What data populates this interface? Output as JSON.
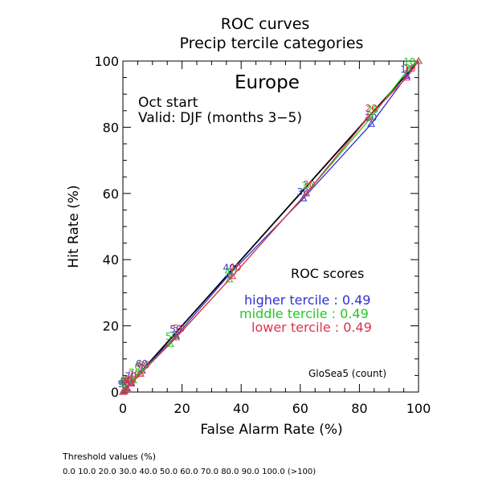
{
  "chart_data": {
    "type": "line",
    "title": "ROC curves",
    "subtitle": "Precip tercile categories",
    "region": "Europe",
    "start_label": "Oct start",
    "valid_label": "Valid: DJF (months 3−5)",
    "xlabel": "False Alarm Rate (%)",
    "ylabel": "Hit Rate (%)",
    "xlim": [
      0,
      100
    ],
    "ylim": [
      0,
      100
    ],
    "x_ticks": [
      "0",
      "20",
      "40",
      "60",
      "80",
      "100"
    ],
    "y_ticks": [
      "0",
      "20",
      "40",
      "60",
      "80",
      "100"
    ],
    "grid": false,
    "legend_position": "middle-right",
    "scores_title": "ROC scores",
    "model_label": "GloSea5 (count)",
    "threshold_title": "Threshold values (%)",
    "threshold_values": "0.0 10.0 20.0 30.0 40.0 50.0 60.0 70.0 80.0 90.0 100.0 (>100)",
    "series": [
      {
        "name": "higher tercile",
        "score_text": "higher tercile : 0.49",
        "color": "#2f2fd6",
        "x": [
          0,
          0.4,
          1.2,
          2.8,
          6.5,
          18,
          36,
          61,
          84,
          96,
          100
        ],
        "y": [
          0,
          0.5,
          1.3,
          2.8,
          6.5,
          17,
          35.5,
          58.5,
          81,
          95.5,
          100
        ],
        "labels": [
          "",
          "90",
          "80",
          "70",
          "60",
          "50",
          "40",
          "30",
          "20",
          "10",
          ""
        ]
      },
      {
        "name": "middle tercile",
        "score_text": "middle tercile : 0.49",
        "color": "#22c922",
        "x": [
          0,
          0.3,
          1.2,
          3.5,
          5.5,
          16,
          36,
          62,
          84,
          96.5,
          100
        ],
        "y": [
          0,
          0.3,
          1.5,
          3.5,
          5.5,
          14.5,
          34,
          60,
          83,
          97.5,
          100
        ],
        "labels": [
          "",
          "90",
          "80",
          "70",
          "60",
          "50",
          "40",
          "30",
          "20",
          "10",
          ""
        ]
      },
      {
        "name": "lower tercile",
        "score_text": "lower tercile : 0.49",
        "color": "#e0324a",
        "x": [
          0,
          0.6,
          1.5,
          2.8,
          6,
          18,
          37,
          62,
          83,
          96,
          100
        ],
        "y": [
          0,
          0.2,
          1.1,
          2.5,
          5.5,
          16.5,
          35,
          60,
          83,
          95,
          100
        ],
        "labels": [
          "",
          "90",
          "80",
          "70",
          "60",
          "50",
          "40",
          "30",
          "20",
          "10",
          ""
        ]
      }
    ],
    "diagonal_color": "#000000"
  }
}
